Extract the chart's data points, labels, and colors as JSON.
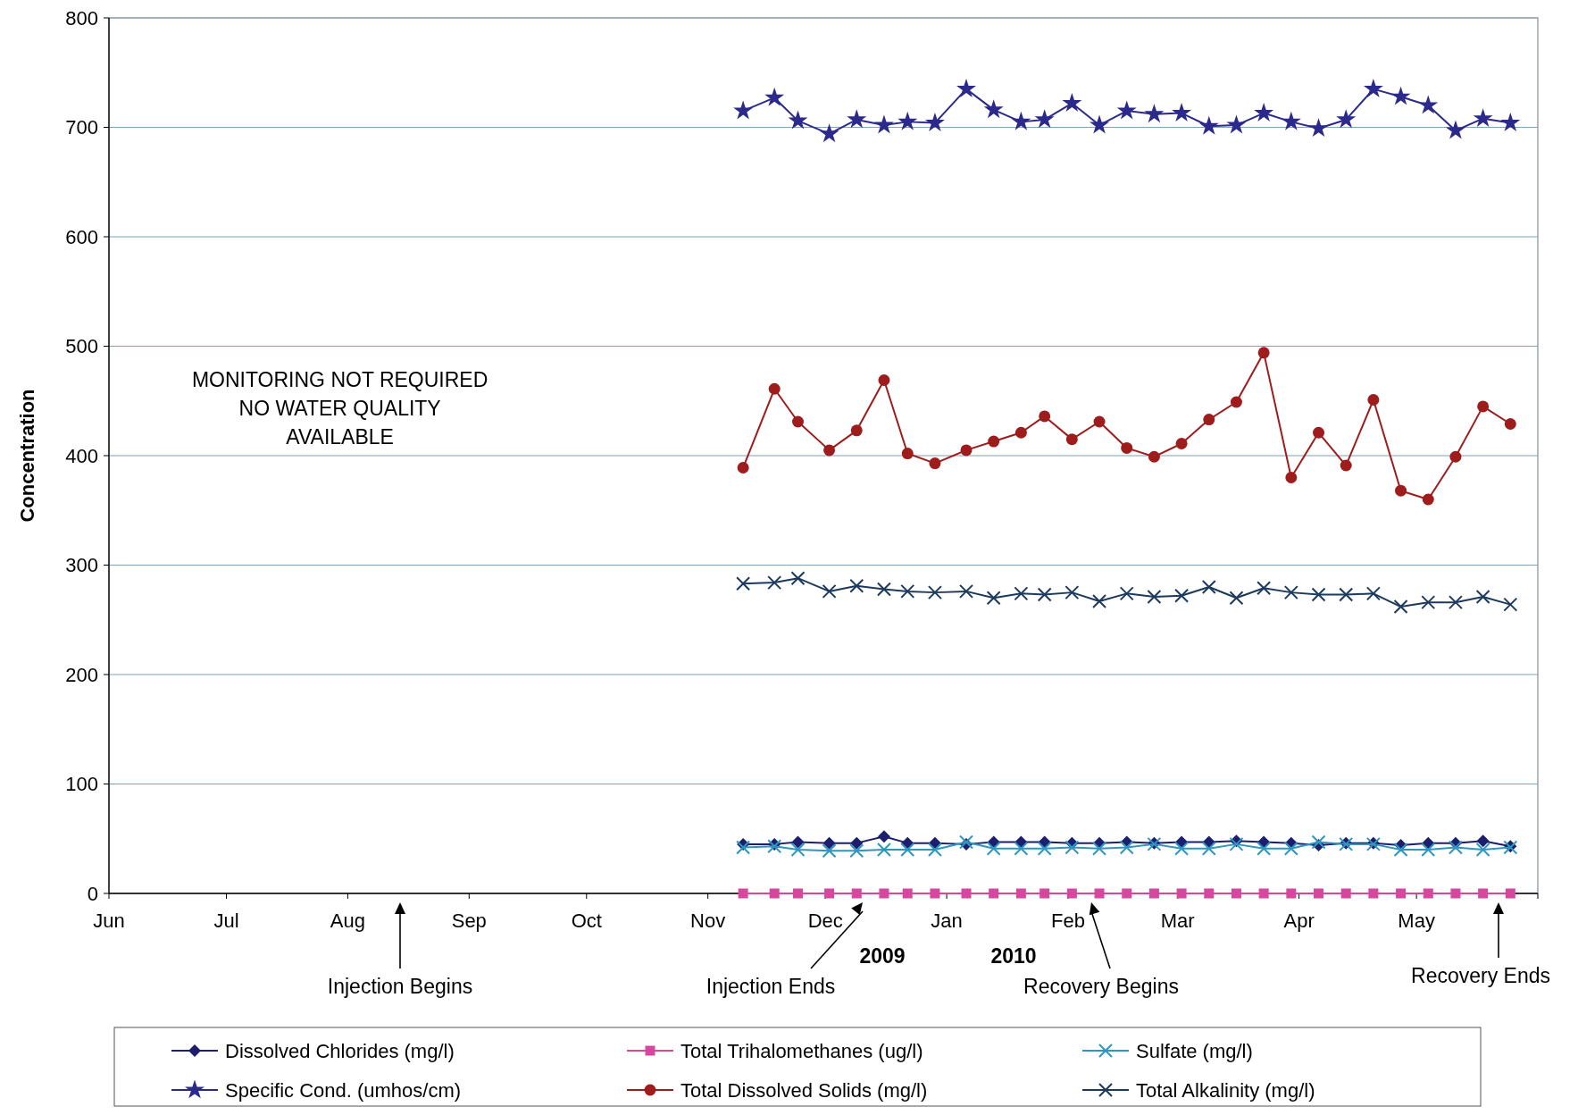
{
  "chart_data": {
    "type": "line",
    "ylabel": "Concentration",
    "ylim": [
      0,
      800
    ],
    "yticks": [
      0,
      100,
      200,
      300,
      400,
      500,
      600,
      700,
      800
    ],
    "xlim": [
      "2009-06-01",
      "2010-06-01"
    ],
    "xticks": [
      {
        "value": "2009-06-01",
        "label": "Jun"
      },
      {
        "value": "2009-07-01",
        "label": "Jul"
      },
      {
        "value": "2009-08-01",
        "label": "Aug"
      },
      {
        "value": "2009-09-01",
        "label": "Sep"
      },
      {
        "value": "2009-10-01",
        "label": "Oct"
      },
      {
        "value": "2009-11-01",
        "label": "Nov"
      },
      {
        "value": "2009-12-01",
        "label": "Dec"
      },
      {
        "value": "2010-01-01",
        "label": "Jan"
      },
      {
        "value": "2010-02-01",
        "label": "Feb"
      },
      {
        "value": "2010-03-01",
        "label": "Mar"
      },
      {
        "value": "2010-04-01",
        "label": "Apr"
      },
      {
        "value": "2010-05-01",
        "label": "May"
      },
      {
        "value": "2010-06-01",
        "label": null
      }
    ],
    "x": [
      "2009-11-10",
      "2009-11-18",
      "2009-11-24",
      "2009-12-02",
      "2009-12-09",
      "2009-12-16",
      "2009-12-22",
      "2009-12-29",
      "2010-01-06",
      "2010-01-13",
      "2010-01-20",
      "2010-01-26",
      "2010-02-02",
      "2010-02-09",
      "2010-02-16",
      "2010-02-23",
      "2010-03-02",
      "2010-03-09",
      "2010-03-16",
      "2010-03-23",
      "2010-03-30",
      "2010-04-06",
      "2010-04-13",
      "2010-04-20",
      "2010-04-27",
      "2010-05-04",
      "2010-05-11",
      "2010-05-18",
      "2010-05-25"
    ],
    "grid": "y",
    "legend": "bottom",
    "line_style": "solid",
    "series": [
      {
        "name": "Dissolved Chlorides (mg/l)",
        "color": "#1b1f6e",
        "marker": "diamond",
        "values": [
          45,
          45,
          47,
          46,
          46,
          52,
          46,
          46,
          45,
          47,
          47,
          47,
          46,
          46,
          47,
          46,
          47,
          47,
          48,
          47,
          46,
          44,
          46,
          46,
          44,
          46,
          46,
          48,
          43
        ]
      },
      {
        "name": "Total Trihalomethanes (ug/l)",
        "color": "#d6479e",
        "marker": "square",
        "values": [
          0,
          0,
          0,
          0,
          0,
          0,
          0,
          0,
          0,
          0,
          0,
          0,
          0,
          0,
          0,
          0,
          0,
          0,
          0,
          0,
          0,
          0,
          0,
          0,
          0,
          0,
          0,
          0,
          0
        ]
      },
      {
        "name": "Sulfate (mg/l)",
        "color": "#2f96c0",
        "marker": "cross",
        "values": [
          42,
          43,
          40,
          39,
          39,
          40,
          40,
          40,
          47,
          41,
          41,
          41,
          42,
          41,
          42,
          45,
          41,
          41,
          45,
          41,
          41,
          47,
          45,
          45,
          40,
          40,
          42,
          40,
          42
        ]
      },
      {
        "name": "Specific Cond. (umhos/cm)",
        "color": "#2b2a8c",
        "marker": "star",
        "values": [
          715,
          727,
          706,
          694,
          707,
          702,
          705,
          704,
          735,
          716,
          705,
          707,
          722,
          702,
          715,
          712,
          713,
          701,
          702,
          713,
          705,
          699,
          707,
          735,
          728,
          720,
          697,
          708,
          704
        ]
      },
      {
        "name": "Total Dissolved Solids (mg/l)",
        "color": "#9e1c1c",
        "marker": "circle",
        "values": [
          389,
          461,
          431,
          405,
          423,
          469,
          402,
          393,
          405,
          413,
          421,
          436,
          415,
          431,
          407,
          399,
          411,
          433,
          449,
          494,
          380,
          421,
          391,
          451,
          368,
          360,
          399,
          445,
          429
        ]
      },
      {
        "name": "Total Alkalinity (mg/l)",
        "color": "#1c3a5e",
        "marker": "cross",
        "values": [
          283,
          284,
          288,
          276,
          281,
          278,
          276,
          275,
          276,
          270,
          274,
          273,
          275,
          267,
          274,
          271,
          272,
          280,
          270,
          279,
          275,
          273,
          273,
          274,
          262,
          266,
          266,
          271,
          264
        ]
      }
    ],
    "annotations": [
      "MONITORING NOT REQUIRED\nNO WATER QUALITY\nAVAILABLE",
      "Injection Begins",
      "Injection Ends",
      "Recovery Begins",
      "Recovery Ends",
      "2009",
      "2010"
    ]
  }
}
